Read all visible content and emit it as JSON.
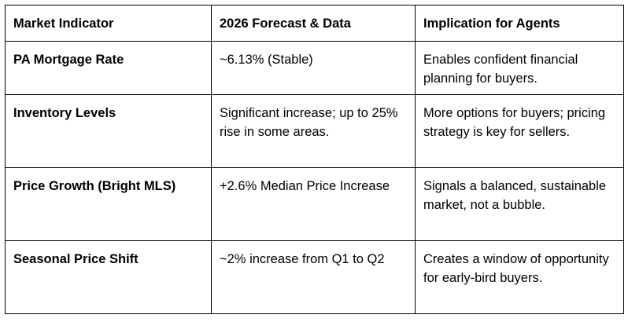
{
  "table": {
    "headers": [
      "Market Indicator",
      "2026 Forecast & Data",
      "Implication for Agents"
    ],
    "rows": [
      {
        "indicator": "PA Mortgage Rate",
        "forecast": "~6.13% (Stable)",
        "implication": "Enables confident financial planning for buyers."
      },
      {
        "indicator": "Inventory Levels",
        "forecast": "Significant increase; up to 25% rise in some areas.",
        "implication": "More options for buyers; pricing strategy is key for sellers."
      },
      {
        "indicator": "Price Growth (Bright MLS)",
        "forecast": "+2.6% Median Price Increase",
        "implication": "Signals a balanced, sustainable market, not a bubble."
      },
      {
        "indicator": "Seasonal Price Shift",
        "forecast": "~2% increase from Q1 to Q2",
        "implication": "Creates a window of opportunity for early-bird buyers."
      }
    ]
  }
}
